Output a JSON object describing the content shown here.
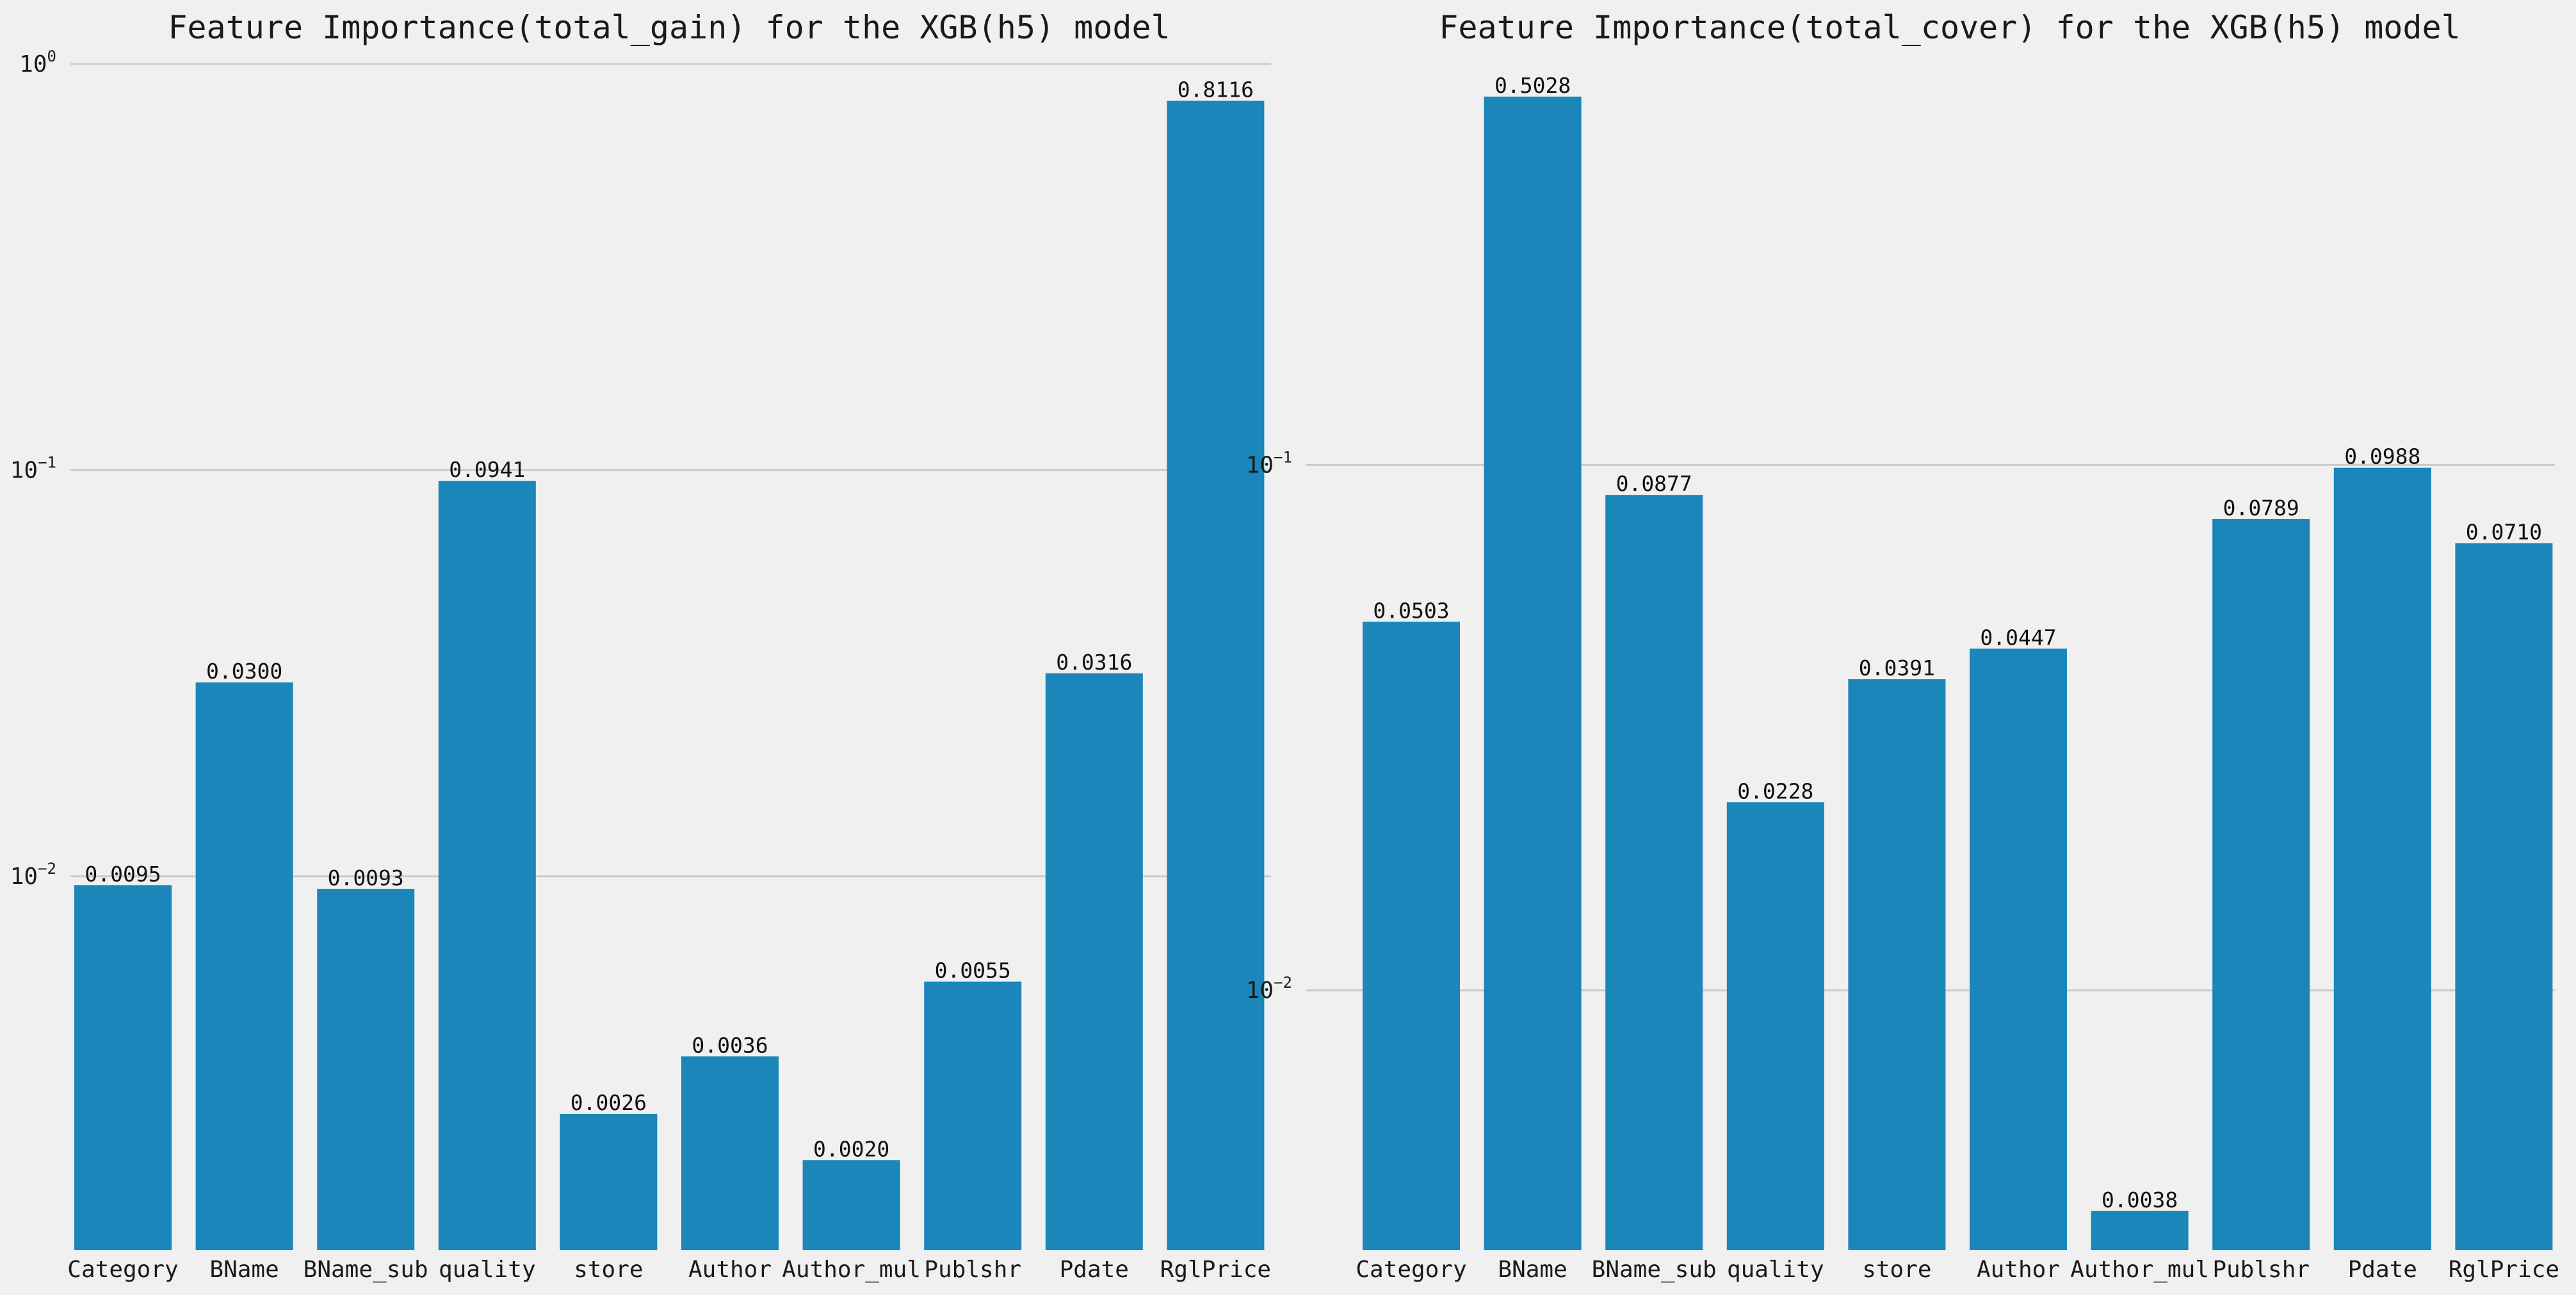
{
  "colors": {
    "background": "#f0f0f0",
    "bar": "#1a86b9",
    "grid": "#cbcbcb",
    "text": "#1a1a1a"
  },
  "chart_data": [
    {
      "type": "bar",
      "title": "Feature Importance(total_gain) for the XGB(h5) model",
      "xlabel": "",
      "ylabel": "",
      "yscale": "log",
      "ylim": [
        0.0012,
        1.0
      ],
      "yticks": [
        {
          "value": 0.01,
          "base": "10",
          "exp": "−2"
        },
        {
          "value": 0.1,
          "base": "10",
          "exp": "−1"
        },
        {
          "value": 1,
          "base": "10",
          "exp": "0"
        }
      ],
      "grid": true,
      "categories": [
        "Category",
        "BName",
        "BName_sub",
        "quality",
        "store",
        "Author",
        "Author_mul",
        "Publshr",
        "Pdate",
        "RglPrice"
      ],
      "values": [
        0.0095,
        0.03,
        0.0093,
        0.0941,
        0.0026,
        0.0036,
        0.002,
        0.0055,
        0.0316,
        0.8116
      ],
      "data_labels": [
        "0.0095",
        "0.0300",
        "0.0093",
        "0.0941",
        "0.0026",
        "0.0036",
        "0.0020",
        "0.0055",
        "0.0316",
        "0.8116"
      ]
    },
    {
      "type": "bar",
      "title": "Feature Importance(total_cover) for the XGB(h5) model",
      "xlabel": "",
      "ylabel": "",
      "yscale": "log",
      "ylim": [
        0.0032,
        0.58
      ],
      "yticks": [
        {
          "value": 0.01,
          "base": "10",
          "exp": "−2"
        },
        {
          "value": 0.1,
          "base": "10",
          "exp": "−1"
        }
      ],
      "grid": true,
      "categories": [
        "Category",
        "BName",
        "BName_sub",
        "quality",
        "store",
        "Author",
        "Author_mul",
        "Publshr",
        "Pdate",
        "RglPrice"
      ],
      "values": [
        0.0503,
        0.5028,
        0.0877,
        0.0228,
        0.0391,
        0.0447,
        0.0038,
        0.0789,
        0.0988,
        0.071
      ],
      "data_labels": [
        "0.0503",
        "0.5028",
        "0.0877",
        "0.0228",
        "0.0391",
        "0.0447",
        "0.0038",
        "0.0789",
        "0.0988",
        "0.0710"
      ]
    }
  ]
}
